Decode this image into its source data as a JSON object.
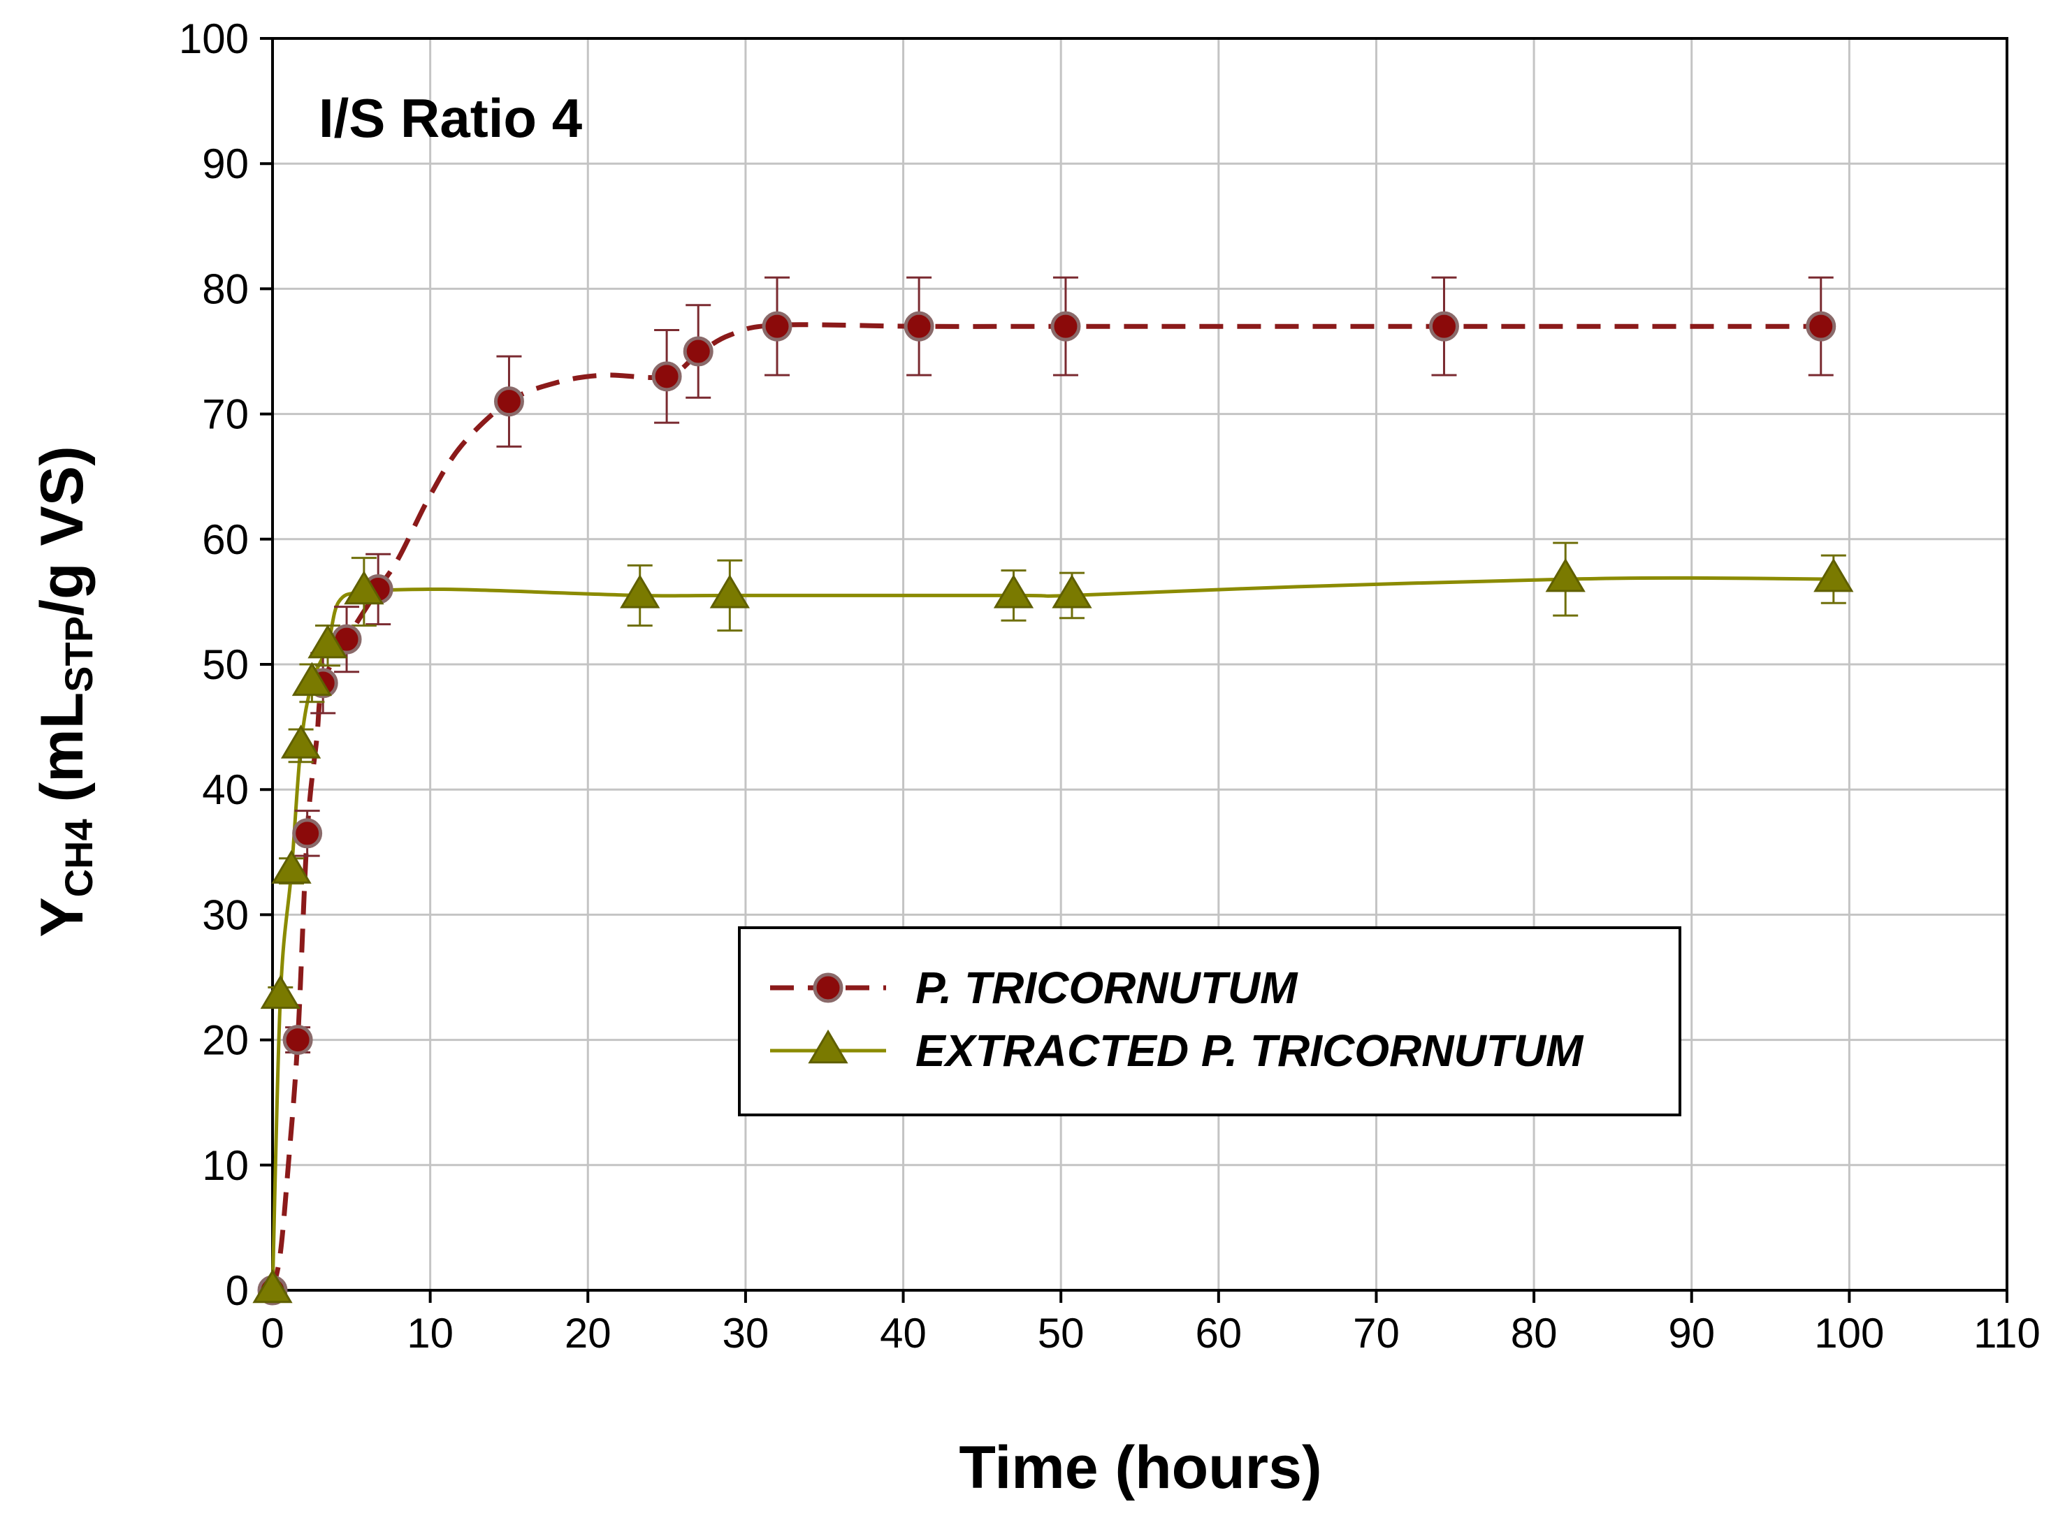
{
  "chart_data": {
    "type": "scatter",
    "annotation": "I/S Ratio 4",
    "xlabel": "Time (hours)",
    "ylabel": {
      "main": "Y",
      "sub": "CH4",
      "part2": " (mL",
      "sub2": "STP",
      "part3": "/g VS)"
    },
    "xlim": [
      0,
      110
    ],
    "ylim": [
      0,
      100
    ],
    "x_ticks": [
      0,
      10,
      20,
      30,
      40,
      50,
      60,
      70,
      80,
      90,
      100,
      110
    ],
    "y_ticks": [
      0,
      10,
      20,
      30,
      40,
      50,
      60,
      70,
      80,
      90,
      100
    ],
    "grid": true,
    "legend_position": "center-right",
    "series": [
      {
        "name": "P. TRICORNUTUM",
        "marker": "circle",
        "line_style": "dashed",
        "color": "#8B1A1A",
        "marker_fill": "#8B0A0A",
        "errorbar_color": "#7A2A30",
        "points": [
          {
            "x": 0,
            "y": 0,
            "err": 0
          },
          {
            "x": 1.6,
            "y": 20,
            "err": 1
          },
          {
            "x": 2.2,
            "y": 36.5,
            "err": 1.8
          },
          {
            "x": 3.2,
            "y": 48.5,
            "err": 2.4
          },
          {
            "x": 4.7,
            "y": 52,
            "err": 2.6
          },
          {
            "x": 6.7,
            "y": 56,
            "err": 2.8
          },
          {
            "x": 15,
            "y": 71,
            "err": 3.6
          },
          {
            "x": 25,
            "y": 73,
            "err": 3.7
          },
          {
            "x": 27,
            "y": 75,
            "err": 3.7
          },
          {
            "x": 32,
            "y": 77,
            "err": 3.9
          },
          {
            "x": 41,
            "y": 77,
            "err": 3.9
          },
          {
            "x": 50.3,
            "y": 77,
            "err": 3.9
          },
          {
            "x": 74.3,
            "y": 77,
            "err": 3.9
          },
          {
            "x": 98.2,
            "y": 77,
            "err": 3.9
          }
        ],
        "curve": [
          [
            0,
            0
          ],
          [
            0.5,
            3
          ],
          [
            1,
            10
          ],
          [
            1.6,
            20
          ],
          [
            2.2,
            36.5
          ],
          [
            2.8,
            44
          ],
          [
            3.2,
            48.5
          ],
          [
            4.7,
            52
          ],
          [
            6.7,
            56
          ],
          [
            8,
            58.5
          ],
          [
            10,
            63.5
          ],
          [
            12,
            67.5
          ],
          [
            15,
            71
          ],
          [
            18,
            72.5
          ],
          [
            21,
            73.1
          ],
          [
            25,
            73
          ],
          [
            27,
            74.8
          ],
          [
            29,
            76.3
          ],
          [
            32,
            77.1
          ],
          [
            41,
            77
          ],
          [
            50.3,
            77
          ],
          [
            74.3,
            77
          ],
          [
            98.2,
            77
          ]
        ]
      },
      {
        "name": "EXTRACTED P. TRICORNUTUM",
        "marker": "triangle",
        "line_style": "solid",
        "color": "#8B8B00",
        "marker_fill": "#7A7A00",
        "errorbar_color": "#6F6F0A",
        "points": [
          {
            "x": 0,
            "y": 0,
            "err": 0
          },
          {
            "x": 0.5,
            "y": 23.5,
            "err": 0.7
          },
          {
            "x": 1.2,
            "y": 33.5,
            "err": 1
          },
          {
            "x": 1.8,
            "y": 43.5,
            "err": 1.3
          },
          {
            "x": 2.5,
            "y": 48.5,
            "err": 1.5
          },
          {
            "x": 3.5,
            "y": 51.5,
            "err": 1.6
          },
          {
            "x": 5.8,
            "y": 55.8,
            "err": 2.7
          },
          {
            "x": 23.3,
            "y": 55.5,
            "err": 2.4
          },
          {
            "x": 29,
            "y": 55.5,
            "err": 2.8
          },
          {
            "x": 47,
            "y": 55.5,
            "err": 2
          },
          {
            "x": 50.7,
            "y": 55.5,
            "err": 1.8
          },
          {
            "x": 82,
            "y": 56.8,
            "err": 2.9
          },
          {
            "x": 99,
            "y": 56.8,
            "err": 1.9
          }
        ],
        "curve": [
          [
            0,
            0
          ],
          [
            0.5,
            23.5
          ],
          [
            1.2,
            33.5
          ],
          [
            1.8,
            43.5
          ],
          [
            2.5,
            48.5
          ],
          [
            3.5,
            51.5
          ],
          [
            4.2,
            55
          ],
          [
            5.8,
            55.8
          ],
          [
            10,
            56
          ],
          [
            14,
            55.9
          ],
          [
            23.3,
            55.5
          ],
          [
            29,
            55.5
          ],
          [
            47,
            55.5
          ],
          [
            50.7,
            55.5
          ],
          [
            65,
            56.2
          ],
          [
            82,
            56.8
          ],
          [
            90,
            56.9
          ],
          [
            99,
            56.8
          ]
        ]
      }
    ]
  }
}
